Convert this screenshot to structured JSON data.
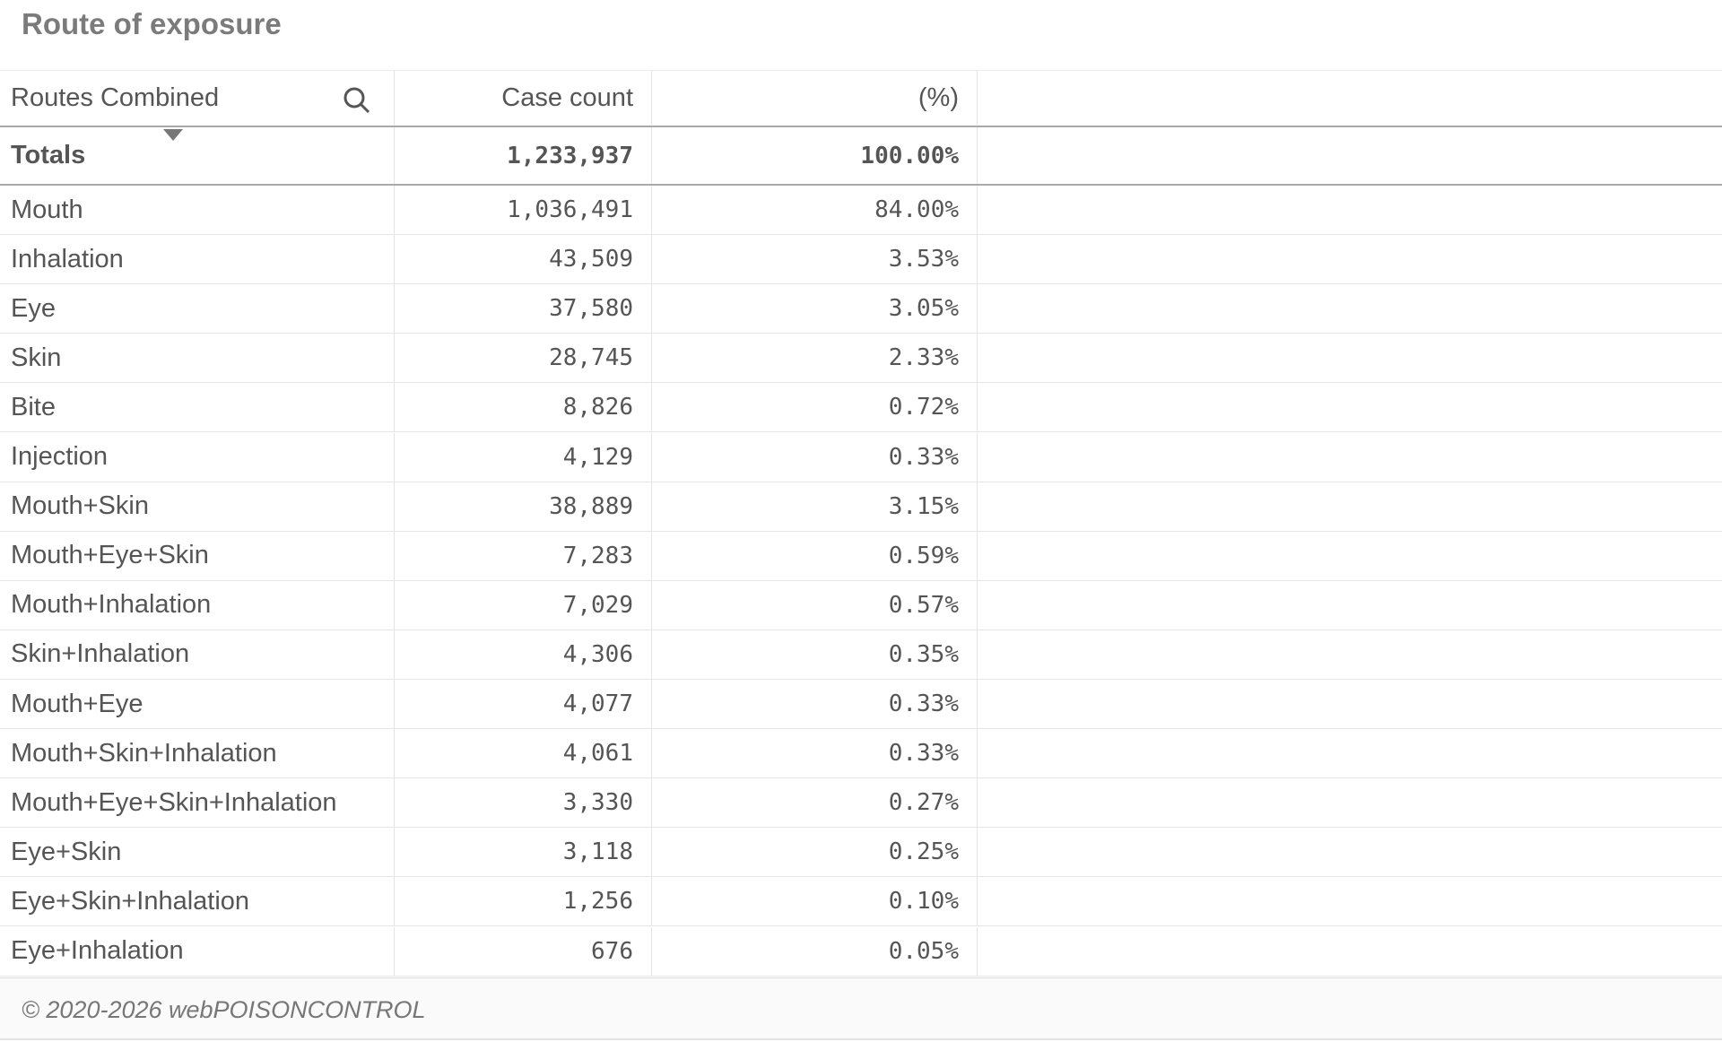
{
  "header": {
    "title": "Route of exposure"
  },
  "table": {
    "columns": [
      "Routes Combined",
      "Case count",
      "(%)"
    ],
    "totals": [
      "Totals",
      "1,233,937",
      "100.00%"
    ],
    "rows": [
      [
        "Mouth",
        "1,036,491",
        "84.00%"
      ],
      [
        "Inhalation",
        "43,509",
        "3.53%"
      ],
      [
        "Eye",
        "37,580",
        "3.05%"
      ],
      [
        "Skin",
        "28,745",
        "2.33%"
      ],
      [
        "Bite",
        "8,826",
        "0.72%"
      ],
      [
        "Injection",
        "4,129",
        "0.33%"
      ],
      [
        "Mouth+Skin",
        "38,889",
        "3.15%"
      ],
      [
        "Mouth+Eye+Skin",
        "7,283",
        "0.59%"
      ],
      [
        "Mouth+Inhalation",
        "7,029",
        "0.57%"
      ],
      [
        "Skin+Inhalation",
        "4,306",
        "0.35%"
      ],
      [
        "Mouth+Eye",
        "4,077",
        "0.33%"
      ],
      [
        "Mouth+Skin+Inhalation",
        "4,061",
        "0.33%"
      ],
      [
        "Mouth+Eye+Skin+Inhalation",
        "3,330",
        "0.27%"
      ],
      [
        "Eye+Skin",
        "3,118",
        "0.25%"
      ],
      [
        "Eye+Skin+Inhalation",
        "1,256",
        "0.10%"
      ],
      [
        "Eye+Inhalation",
        "676",
        "0.05%"
      ]
    ]
  },
  "footer": {
    "text": "© 2020-2026 webPOISONCONTROL"
  }
}
